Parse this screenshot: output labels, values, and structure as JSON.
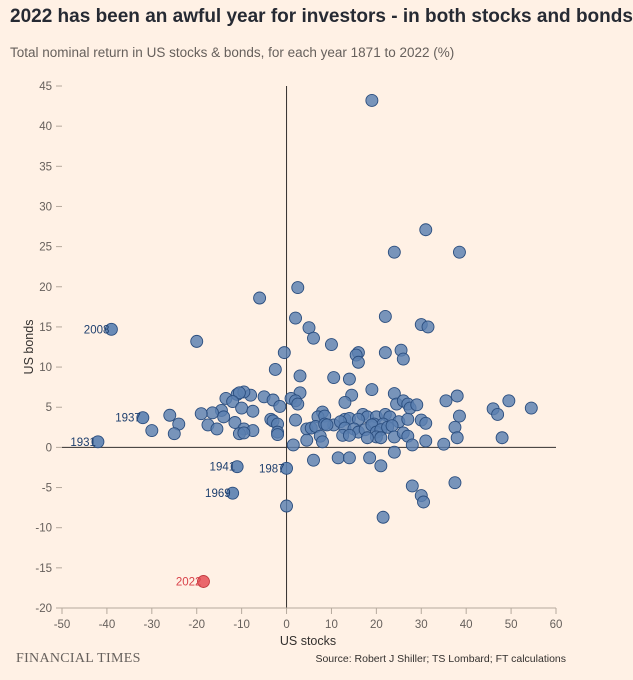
{
  "header": {
    "title": "2022 has been an awful year for investors - in both stocks and bonds",
    "subtitle": "Total nominal return in US stocks & bonds, for each year 1871 to 2022 (%)"
  },
  "footer": {
    "brand": "FINANCIAL TIMES",
    "source": "Source: Robert J Shiller; TS Lombard; FT calculations"
  },
  "colors": {
    "background": "#fff1e5",
    "point": "#5a7fb0",
    "point_stroke": "#2a4d7e",
    "highlight": "#e8585d",
    "highlight_stroke": "#c03b40",
    "label": "#1e3f6e",
    "highlight_label": "#d9424a",
    "axis": "#33302e",
    "tick": "#b5a99d"
  },
  "chart_data": {
    "type": "scatter",
    "title": "2022 has been an awful year for investors - in both stocks and bonds",
    "xlabel": "US stocks",
    "ylabel": "US bonds",
    "xlim": [
      -50,
      60
    ],
    "ylim": [
      -20,
      45
    ],
    "xticks": [
      -50,
      -40,
      -30,
      -20,
      -10,
      0,
      10,
      20,
      30,
      40,
      50,
      60
    ],
    "yticks": [
      -20,
      -15,
      -10,
      -5,
      0,
      5,
      10,
      15,
      20,
      25,
      30,
      35,
      40,
      45
    ],
    "grid": false,
    "annotations": [
      {
        "label": "2008",
        "x": -39,
        "y": 14.7
      },
      {
        "label": "1937",
        "x": -32,
        "y": 3.7
      },
      {
        "label": "1931",
        "x": -42,
        "y": 0.7
      },
      {
        "label": "1941",
        "x": -11,
        "y": -2.4
      },
      {
        "label": "1987",
        "x": 0,
        "y": -2.6
      },
      {
        "label": "1969",
        "x": -12,
        "y": -5.7
      },
      {
        "label": "2022",
        "x": -18.5,
        "y": -16.7,
        "highlight": true
      }
    ],
    "points": [
      [
        19,
        43.2
      ],
      [
        31,
        27.1
      ],
      [
        24,
        24.3
      ],
      [
        38.5,
        24.3
      ],
      [
        2.5,
        19.9
      ],
      [
        -6,
        18.6
      ],
      [
        2,
        16.1
      ],
      [
        22,
        16.3
      ],
      [
        30,
        15.3
      ],
      [
        31.5,
        15.0
      ],
      [
        5,
        14.9
      ],
      [
        -20,
        13.2
      ],
      [
        6,
        13.6
      ],
      [
        10,
        12.8
      ],
      [
        16,
        11.8
      ],
      [
        15.5,
        11.5
      ],
      [
        22,
        11.8
      ],
      [
        25.5,
        12.1
      ],
      [
        -0.5,
        11.8
      ],
      [
        26,
        11.0
      ],
      [
        16,
        10.6
      ],
      [
        -2.5,
        9.7
      ],
      [
        3,
        8.9
      ],
      [
        10.5,
        8.7
      ],
      [
        14,
        8.5
      ],
      [
        19,
        7.2
      ],
      [
        3,
        6.8
      ],
      [
        14.5,
        6.5
      ],
      [
        24,
        6.7
      ],
      [
        38,
        6.4
      ],
      [
        -8,
        6.5
      ],
      [
        -11,
        6.6
      ],
      [
        -9.5,
        6.9
      ],
      [
        -10.5,
        6.8
      ],
      [
        -13.5,
        6.1
      ],
      [
        -5,
        6.3
      ],
      [
        -3,
        5.9
      ],
      [
        1,
        6.1
      ],
      [
        2,
        5.8
      ],
      [
        2.5,
        5.4
      ],
      [
        -1.5,
        5.1
      ],
      [
        -12,
        5.7
      ],
      [
        -14.5,
        4.6
      ],
      [
        -10,
        4.9
      ],
      [
        -16.5,
        4.3
      ],
      [
        -19,
        4.2
      ],
      [
        -7.5,
        4.5
      ],
      [
        8,
        4.4
      ],
      [
        13,
        5.6
      ],
      [
        17,
        4.1
      ],
      [
        18,
        3.8
      ],
      [
        20,
        3.8
      ],
      [
        22,
        4.1
      ],
      [
        23,
        3.8
      ],
      [
        24.5,
        5.4
      ],
      [
        26,
        5.8
      ],
      [
        27,
        5.4
      ],
      [
        27.5,
        4.9
      ],
      [
        29,
        5.3
      ],
      [
        30,
        3.4
      ],
      [
        35.5,
        5.8
      ],
      [
        38.5,
        3.9
      ],
      [
        46,
        4.8
      ],
      [
        47,
        4.1
      ],
      [
        49.5,
        5.8
      ],
      [
        54.5,
        4.9
      ],
      [
        7,
        3.8
      ],
      [
        8.5,
        3.9
      ],
      [
        10.5,
        2.8
      ],
      [
        13,
        3.5
      ],
      [
        14,
        3.6
      ],
      [
        16,
        3.5
      ],
      [
        19.5,
        2.9
      ],
      [
        21.5,
        2.9
      ],
      [
        25,
        3.2
      ],
      [
        27,
        3.5
      ],
      [
        31,
        3.0
      ],
      [
        37.5,
        2.5
      ],
      [
        -14,
        3.8
      ],
      [
        -11.5,
        3.1
      ],
      [
        -9.5,
        2.3
      ],
      [
        -3.5,
        3.5
      ],
      [
        -3,
        3.3
      ],
      [
        -2,
        2.9
      ],
      [
        2,
        3.4
      ],
      [
        4.5,
        2.3
      ],
      [
        5.5,
        2.4
      ],
      [
        6.5,
        2.6
      ],
      [
        8.5,
        2.9
      ],
      [
        9,
        2.8
      ],
      [
        12,
        3.2
      ],
      [
        13,
        2.4
      ],
      [
        15,
        2.3
      ],
      [
        16,
        1.9
      ],
      [
        17.5,
        2.2
      ],
      [
        19,
        2.8
      ],
      [
        20,
        1.9
      ],
      [
        21,
        2.2
      ],
      [
        22.5,
        2.5
      ],
      [
        23.5,
        2.7
      ],
      [
        -17.5,
        2.8
      ],
      [
        -15.5,
        2.3
      ],
      [
        -7.5,
        2.1
      ],
      [
        -24,
        2.9
      ],
      [
        -30,
        2.1
      ],
      [
        -26,
        4.0
      ],
      [
        -25,
        1.7
      ],
      [
        -10.5,
        1.7
      ],
      [
        -9.5,
        1.8
      ],
      [
        -2,
        1.9
      ],
      [
        -2,
        1.6
      ],
      [
        7.5,
        1.4
      ],
      [
        12.5,
        1.5
      ],
      [
        14,
        1.5
      ],
      [
        20,
        1.3
      ],
      [
        21,
        1.2
      ],
      [
        24,
        1.3
      ],
      [
        26,
        1.8
      ],
      [
        27,
        1.4
      ],
      [
        31,
        0.8
      ],
      [
        38,
        1.2
      ],
      [
        48,
        1.2
      ],
      [
        8,
        0.7
      ],
      [
        18,
        1.2
      ],
      [
        1.5,
        0.3
      ],
      [
        4.5,
        0.9
      ],
      [
        28,
        0.3
      ],
      [
        35,
        0.4
      ],
      [
        24,
        -0.6
      ],
      [
        11.5,
        -1.3
      ],
      [
        14,
        -1.3
      ],
      [
        18.5,
        -1.3
      ],
      [
        6,
        -1.6
      ],
      [
        21,
        -2.3
      ],
      [
        28,
        -4.8
      ],
      [
        30,
        -6.0
      ],
      [
        30.5,
        -6.8
      ],
      [
        37.5,
        -4.4
      ],
      [
        0,
        -7.3
      ],
      [
        21.5,
        -8.7
      ]
    ]
  }
}
